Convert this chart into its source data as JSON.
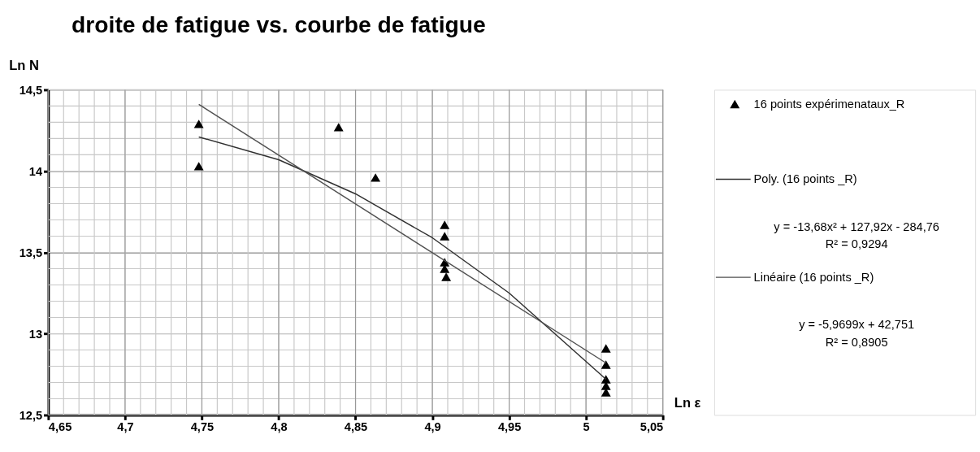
{
  "chart_data": {
    "type": "scatter",
    "title": "droite de fatigue vs. courbe de fatigue",
    "xlabel": "Ln ε",
    "ylabel": "Ln N",
    "xlim": [
      4.65,
      5.05
    ],
    "ylim": [
      12.5,
      14.5
    ],
    "xticks": [
      {
        "value": 4.65,
        "label": "4,65"
      },
      {
        "value": 4.7,
        "label": "4,7"
      },
      {
        "value": 4.75,
        "label": "4,75"
      },
      {
        "value": 4.8,
        "label": "4,8"
      },
      {
        "value": 4.85,
        "label": "4,85"
      },
      {
        "value": 4.9,
        "label": "4,9"
      },
      {
        "value": 4.95,
        "label": "4,95"
      },
      {
        "value": 5,
        "label": "5"
      },
      {
        "value": 5.05,
        "label": "5,05"
      }
    ],
    "yticks": [
      {
        "value": 12.5,
        "label": "12,5"
      },
      13,
      {
        "value": 13.5,
        "label": "13,5"
      },
      14,
      {
        "value": 14.5,
        "label": "14,5"
      }
    ],
    "grid": true,
    "legend": "right",
    "series": [
      {
        "name": "16 points expérimenataux_R",
        "marker": "triangle",
        "color": "#000000",
        "x": [
          4.748,
          4.748,
          4.839,
          4.863,
          4.908,
          4.908,
          4.908,
          null,
          null,
          4.909,
          4.908,
          5.013,
          5.013,
          5.013,
          5.013,
          5.013
        ],
        "values": [
          14.29,
          14.03,
          14.27,
          13.96,
          13.67,
          13.6,
          13.44,
          null,
          null,
          13.35,
          13.4,
          12.91,
          12.81,
          12.72,
          12.68,
          12.64
        ]
      },
      {
        "name": "Poly. (16 points _R)",
        "type": "line",
        "marker": "none",
        "color": "#303030",
        "x": [
          4.748,
          4.8,
          4.85,
          4.9,
          4.95,
          5.013
        ],
        "values": [
          14.21,
          14.07,
          13.86,
          13.59,
          13.25,
          12.72
        ]
      },
      {
        "name": "Linéaire (16 points _R)",
        "type": "line",
        "marker": "none",
        "color": "#505050",
        "x": [
          4.748,
          5.013
        ],
        "values": [
          14.41,
          12.82
        ]
      }
    ],
    "annotations": [
      "y = -13,68x² + 127,92x - 284,76",
      "R² = 0,9294",
      "y = -5,9699x + 42,751",
      "R² = 0,8905"
    ]
  }
}
